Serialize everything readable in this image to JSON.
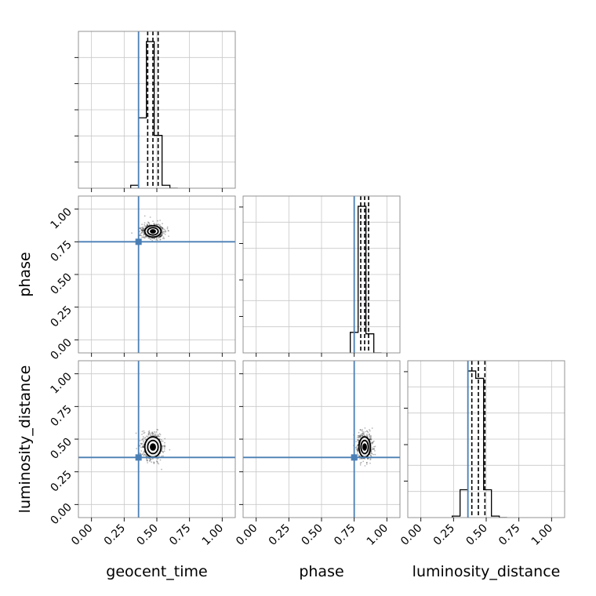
{
  "chart_data": {
    "type": "corner",
    "parameters": [
      "geocent_time",
      "phase",
      "luminosity_distance"
    ],
    "axis_range": [
      -0.1,
      1.1
    ],
    "ticks": [
      0.0,
      0.25,
      0.5,
      0.75,
      1.0
    ],
    "tick_labels": [
      "0.00",
      "0.25",
      "0.50",
      "0.75",
      "1.00"
    ],
    "grid": true,
    "truth": {
      "geocent_time": 0.36,
      "phase": 0.75,
      "luminosity_distance": 0.36
    },
    "truth_color": "#4a7fb5",
    "sample_color": "#000000",
    "histograms": [
      {
        "parameter": "geocent_time",
        "bin_edges": [
          0.3,
          0.36,
          0.42,
          0.48,
          0.54,
          0.6,
          0.66
        ],
        "counts": [
          0.02,
          0.48,
          1.0,
          0.36,
          0.02,
          0.0
        ],
        "quantiles": [
          0.43,
          0.47,
          0.51
        ]
      },
      {
        "parameter": "phase",
        "bin_edges": [
          0.72,
          0.78,
          0.84,
          0.9,
          0.96
        ],
        "counts": [
          0.14,
          1.0,
          0.13,
          0.0
        ],
        "quantiles": [
          0.8,
          0.83,
          0.86
        ]
      },
      {
        "parameter": "luminosity_distance",
        "bin_edges": [
          0.24,
          0.3,
          0.36,
          0.42,
          0.48,
          0.54,
          0.6,
          0.66
        ],
        "counts": [
          0.01,
          0.19,
          1.0,
          0.95,
          0.19,
          0.01,
          0.0
        ],
        "quantiles": [
          0.39,
          0.44,
          0.49
        ]
      }
    ],
    "scatter_panels": [
      {
        "x": "geocent_time",
        "y": "phase",
        "center": [
          0.47,
          0.83
        ],
        "spread": [
          0.04,
          0.028
        ]
      },
      {
        "x": "geocent_time",
        "y": "luminosity_distance",
        "center": [
          0.47,
          0.44
        ],
        "spread": [
          0.04,
          0.05
        ]
      },
      {
        "x": "phase",
        "y": "luminosity_distance",
        "center": [
          0.83,
          0.44
        ],
        "spread": [
          0.028,
          0.05
        ]
      }
    ]
  }
}
